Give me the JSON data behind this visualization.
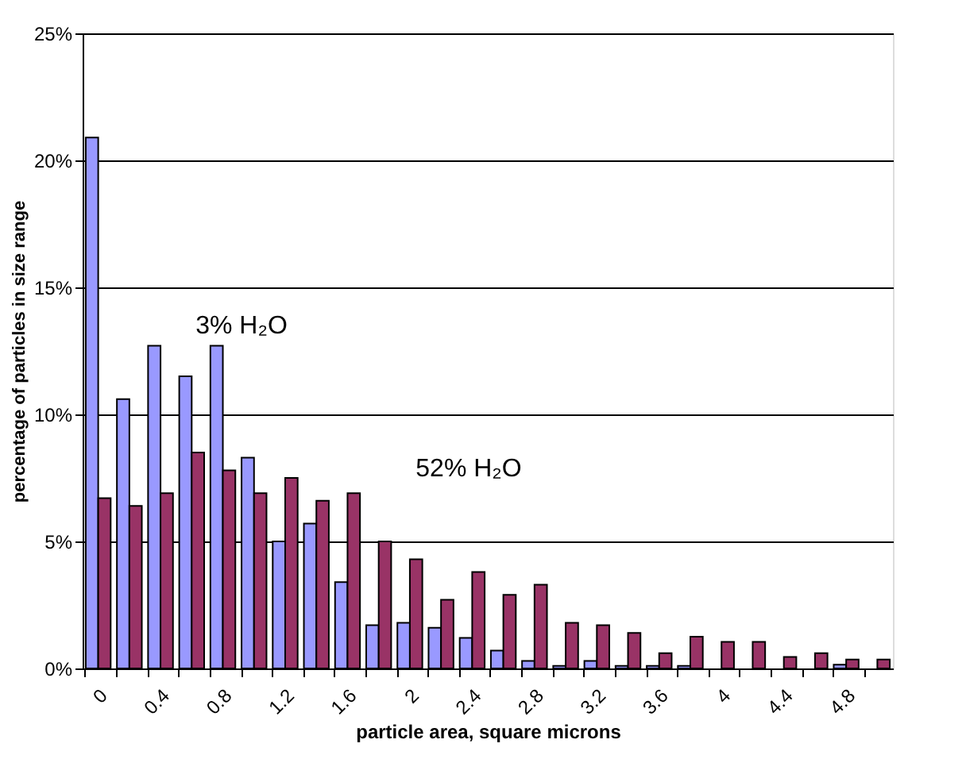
{
  "chart_data": {
    "type": "bar",
    "xlabel": "particle area, square microns",
    "ylabel": "percentage of particles in size range",
    "categories": [
      "0",
      null,
      "0.4",
      null,
      "0.8",
      null,
      "1.2",
      null,
      "1.6",
      null,
      "2",
      null,
      "2.4",
      null,
      "2.8",
      null,
      "3.2",
      null,
      "3.6",
      null,
      "4",
      null,
      "4.4",
      null,
      "4.8",
      null
    ],
    "series": [
      {
        "color": "#9999ff",
        "values": [
          20.9,
          10.6,
          12.7,
          11.5,
          12.7,
          8.3,
          5.0,
          5.7,
          3.4,
          1.7,
          1.8,
          1.6,
          1.2,
          0.7,
          0.3,
          0.1,
          0.3,
          0.1,
          0.1,
          0.1,
          null,
          null,
          null,
          null,
          0.15,
          null
        ]
      },
      {
        "color": "#993366",
        "values": [
          6.7,
          6.4,
          6.9,
          8.5,
          7.8,
          6.9,
          7.5,
          6.6,
          6.9,
          5.0,
          4.3,
          2.7,
          3.8,
          2.9,
          3.3,
          1.8,
          1.7,
          1.4,
          0.6,
          1.25,
          1.05,
          1.05,
          0.45,
          0.6,
          0.35,
          0.35
        ]
      }
    ],
    "ylim": [
      0,
      25
    ],
    "yticks": [
      {
        "value": 0,
        "label": "0%"
      },
      {
        "value": 5,
        "label": "5%"
      },
      {
        "value": 10,
        "label": "10%"
      },
      {
        "value": 15,
        "label": "15%"
      },
      {
        "value": 20,
        "label": "20%"
      },
      {
        "value": 25,
        "label": "25%"
      }
    ],
    "grid": "y",
    "annotations": [
      "3% H₂O",
      "52% H₂O"
    ]
  }
}
